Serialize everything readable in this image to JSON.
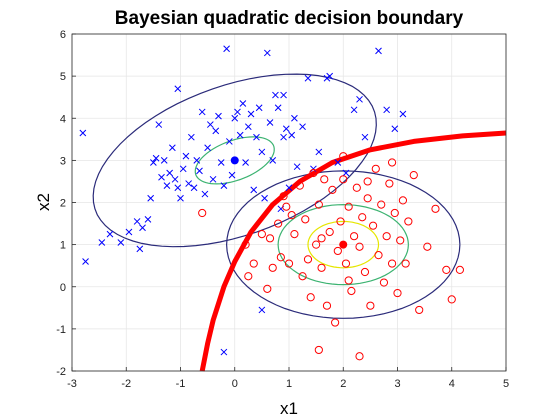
{
  "chart_data": {
    "type": "scatter",
    "title": "Bayesian quadratic decision boundary",
    "xlabel": "x1",
    "ylabel": "x2",
    "xlim": [
      -3,
      5
    ],
    "ylim": [
      -2,
      6
    ],
    "xticks": [
      "-3",
      "-2",
      "-1",
      "0",
      "1",
      "2",
      "3",
      "4",
      "5"
    ],
    "yticks": [
      "-2",
      "-1",
      "0",
      "1",
      "2",
      "3",
      "4",
      "5",
      "6"
    ],
    "grid": true,
    "colors": {
      "class1": "#0000ff",
      "class2": "#ff0000",
      "boundary": "#ff0000",
      "ellipse_outer": "#2b2b7a",
      "ellipse_mid": "#3cb371",
      "ellipse_inner": "#e6e600"
    },
    "class1": {
      "marker": "x",
      "mean": [
        0,
        3
      ],
      "points": [
        [
          -2.8,
          3.65
        ],
        [
          -2.75,
          0.6
        ],
        [
          -2.45,
          1.05
        ],
        [
          -2.3,
          1.25
        ],
        [
          -2.1,
          1.05
        ],
        [
          -1.95,
          1.3
        ],
        [
          -1.8,
          1.55
        ],
        [
          -1.75,
          0.9
        ],
        [
          -1.7,
          1.4
        ],
        [
          -1.6,
          1.6
        ],
        [
          -1.55,
          2.1
        ],
        [
          -1.5,
          2.95
        ],
        [
          -1.45,
          3.05
        ],
        [
          -1.4,
          3.85
        ],
        [
          -1.35,
          2.6
        ],
        [
          -1.3,
          3.0
        ],
        [
          -1.25,
          2.4
        ],
        [
          -1.2,
          2.7
        ],
        [
          -1.15,
          3.3
        ],
        [
          -1.1,
          2.55
        ],
        [
          -1.05,
          2.35
        ],
        [
          -1.0,
          2.1
        ],
        [
          -0.95,
          2.8
        ],
        [
          -0.9,
          3.1
        ],
        [
          -0.85,
          2.45
        ],
        [
          -0.8,
          3.55
        ],
        [
          -0.75,
          2.35
        ],
        [
          -0.7,
          3.0
        ],
        [
          -0.65,
          2.75
        ],
        [
          -0.6,
          4.15
        ],
        [
          -0.55,
          2.2
        ],
        [
          -0.5,
          3.3
        ],
        [
          -0.45,
          3.85
        ],
        [
          -0.4,
          2.55
        ],
        [
          -0.35,
          3.7
        ],
        [
          -0.3,
          4.05
        ],
        [
          -0.25,
          2.95
        ],
        [
          -0.2,
          2.4
        ],
        [
          -0.15,
          5.65
        ],
        [
          -0.1,
          3.45
        ],
        [
          -0.05,
          2.65
        ],
        [
          0.0,
          4.0
        ],
        [
          0.05,
          4.15
        ],
        [
          0.1,
          3.6
        ],
        [
          0.15,
          4.35
        ],
        [
          0.2,
          2.95
        ],
        [
          0.25,
          3.8
        ],
        [
          0.3,
          4.1
        ],
        [
          0.35,
          2.3
        ],
        [
          0.4,
          3.55
        ],
        [
          0.45,
          4.25
        ],
        [
          0.5,
          3.2
        ],
        [
          0.55,
          2.1
        ],
        [
          0.6,
          5.55
        ],
        [
          0.65,
          3.9
        ],
        [
          0.7,
          3.0
        ],
        [
          0.75,
          4.55
        ],
        [
          0.8,
          4.25
        ],
        [
          0.85,
          1.85
        ],
        [
          0.9,
          3.55
        ],
        [
          0.95,
          3.75
        ],
        [
          1.0,
          2.35
        ],
        [
          1.05,
          3.6
        ],
        [
          1.1,
          4.0
        ],
        [
          1.15,
          2.85
        ],
        [
          1.25,
          3.8
        ],
        [
          1.35,
          4.95
        ],
        [
          1.45,
          2.8
        ],
        [
          1.55,
          3.2
        ],
        [
          1.7,
          4.95
        ],
        [
          1.75,
          5.0
        ],
        [
          1.9,
          2.95
        ],
        [
          2.05,
          2.7
        ],
        [
          2.2,
          4.2
        ],
        [
          2.3,
          4.45
        ],
        [
          2.4,
          3.55
        ],
        [
          2.65,
          5.6
        ],
        [
          2.8,
          4.2
        ],
        [
          2.95,
          3.75
        ],
        [
          3.1,
          4.1
        ],
        [
          -0.2,
          -1.55
        ],
        [
          0.5,
          -0.55
        ],
        [
          -1.05,
          4.7
        ],
        [
          0.9,
          4.55
        ]
      ]
    },
    "class2": {
      "marker": "o",
      "mean": [
        2,
        1
      ],
      "points": [
        [
          -0.6,
          1.75
        ],
        [
          0.2,
          1.0
        ],
        [
          0.35,
          0.55
        ],
        [
          0.5,
          1.25
        ],
        [
          0.6,
          -0.05
        ],
        [
          0.65,
          1.15
        ],
        [
          0.7,
          0.45
        ],
        [
          0.8,
          1.5
        ],
        [
          0.85,
          0.7
        ],
        [
          0.9,
          2.15
        ],
        [
          0.95,
          1.9
        ],
        [
          1.0,
          0.55
        ],
        [
          1.1,
          1.25
        ],
        [
          1.2,
          2.4
        ],
        [
          1.25,
          0.25
        ],
        [
          1.3,
          1.6
        ],
        [
          1.35,
          0.65
        ],
        [
          1.4,
          -0.25
        ],
        [
          1.45,
          2.7
        ],
        [
          1.5,
          1.0
        ],
        [
          1.55,
          1.95
        ],
        [
          1.6,
          0.45
        ],
        [
          1.65,
          2.55
        ],
        [
          1.7,
          -0.45
        ],
        [
          1.75,
          1.3
        ],
        [
          1.8,
          2.3
        ],
        [
          1.85,
          -0.85
        ],
        [
          1.9,
          0.85
        ],
        [
          1.95,
          1.55
        ],
        [
          2.0,
          2.55
        ],
        [
          2.05,
          0.55
        ],
        [
          2.1,
          1.9
        ],
        [
          2.15,
          -0.1
        ],
        [
          2.2,
          1.2
        ],
        [
          2.25,
          2.35
        ],
        [
          2.3,
          0.95
        ],
        [
          2.35,
          1.65
        ],
        [
          2.4,
          0.35
        ],
        [
          2.45,
          2.1
        ],
        [
          2.5,
          -0.45
        ],
        [
          2.55,
          1.45
        ],
        [
          2.6,
          2.8
        ],
        [
          2.65,
          0.75
        ],
        [
          2.7,
          1.95
        ],
        [
          2.75,
          0.1
        ],
        [
          2.8,
          1.2
        ],
        [
          2.85,
          2.45
        ],
        [
          2.9,
          0.55
        ],
        [
          2.95,
          1.75
        ],
        [
          3.0,
          -0.15
        ],
        [
          3.05,
          1.1
        ],
        [
          3.1,
          2.05
        ],
        [
          3.15,
          0.55
        ],
        [
          3.2,
          1.55
        ],
        [
          3.3,
          2.65
        ],
        [
          3.4,
          -0.55
        ],
        [
          3.55,
          0.95
        ],
        [
          3.7,
          1.85
        ],
        [
          3.9,
          0.4
        ],
        [
          4.15,
          0.4
        ],
        [
          4.0,
          -0.3
        ],
        [
          2.3,
          -1.65
        ],
        [
          1.55,
          -1.5
        ],
        [
          0.25,
          0.25
        ],
        [
          2.0,
          3.1
        ],
        [
          2.9,
          2.95
        ],
        [
          1.05,
          1.7
        ],
        [
          2.45,
          2.5
        ],
        [
          2.1,
          0.15
        ],
        [
          1.6,
          1.15
        ]
      ]
    },
    "boundary": {
      "label": "",
      "points": [
        [
          -0.6,
          -2.0
        ],
        [
          -0.5,
          -1.35
        ],
        [
          -0.4,
          -0.8
        ],
        [
          -0.2,
          0.0
        ],
        [
          0.0,
          0.6
        ],
        [
          0.3,
          1.3
        ],
        [
          0.7,
          1.95
        ],
        [
          1.2,
          2.5
        ],
        [
          1.8,
          2.95
        ],
        [
          2.5,
          3.25
        ],
        [
          3.3,
          3.45
        ],
        [
          4.2,
          3.58
        ],
        [
          5.0,
          3.65
        ]
      ]
    },
    "contours": [
      {
        "class": 1,
        "level": "inner",
        "center": [
          0,
          3
        ],
        "rx": 0.8,
        "ry": 0.45,
        "angle_deg": 30
      },
      {
        "class": 1,
        "level": "outer",
        "center": [
          0,
          3
        ],
        "rx": 2.85,
        "ry": 1.7,
        "angle_deg": 30
      },
      {
        "class": 2,
        "level": "inner",
        "center": [
          2,
          1
        ],
        "rx": 0.65,
        "ry": 0.55,
        "angle_deg": 0
      },
      {
        "class": 2,
        "level": "mid",
        "center": [
          2,
          1
        ],
        "rx": 1.2,
        "ry": 0.95,
        "angle_deg": 0
      },
      {
        "class": 2,
        "level": "outer",
        "center": [
          2,
          1
        ],
        "rx": 2.15,
        "ry": 1.75,
        "angle_deg": 0
      }
    ]
  }
}
